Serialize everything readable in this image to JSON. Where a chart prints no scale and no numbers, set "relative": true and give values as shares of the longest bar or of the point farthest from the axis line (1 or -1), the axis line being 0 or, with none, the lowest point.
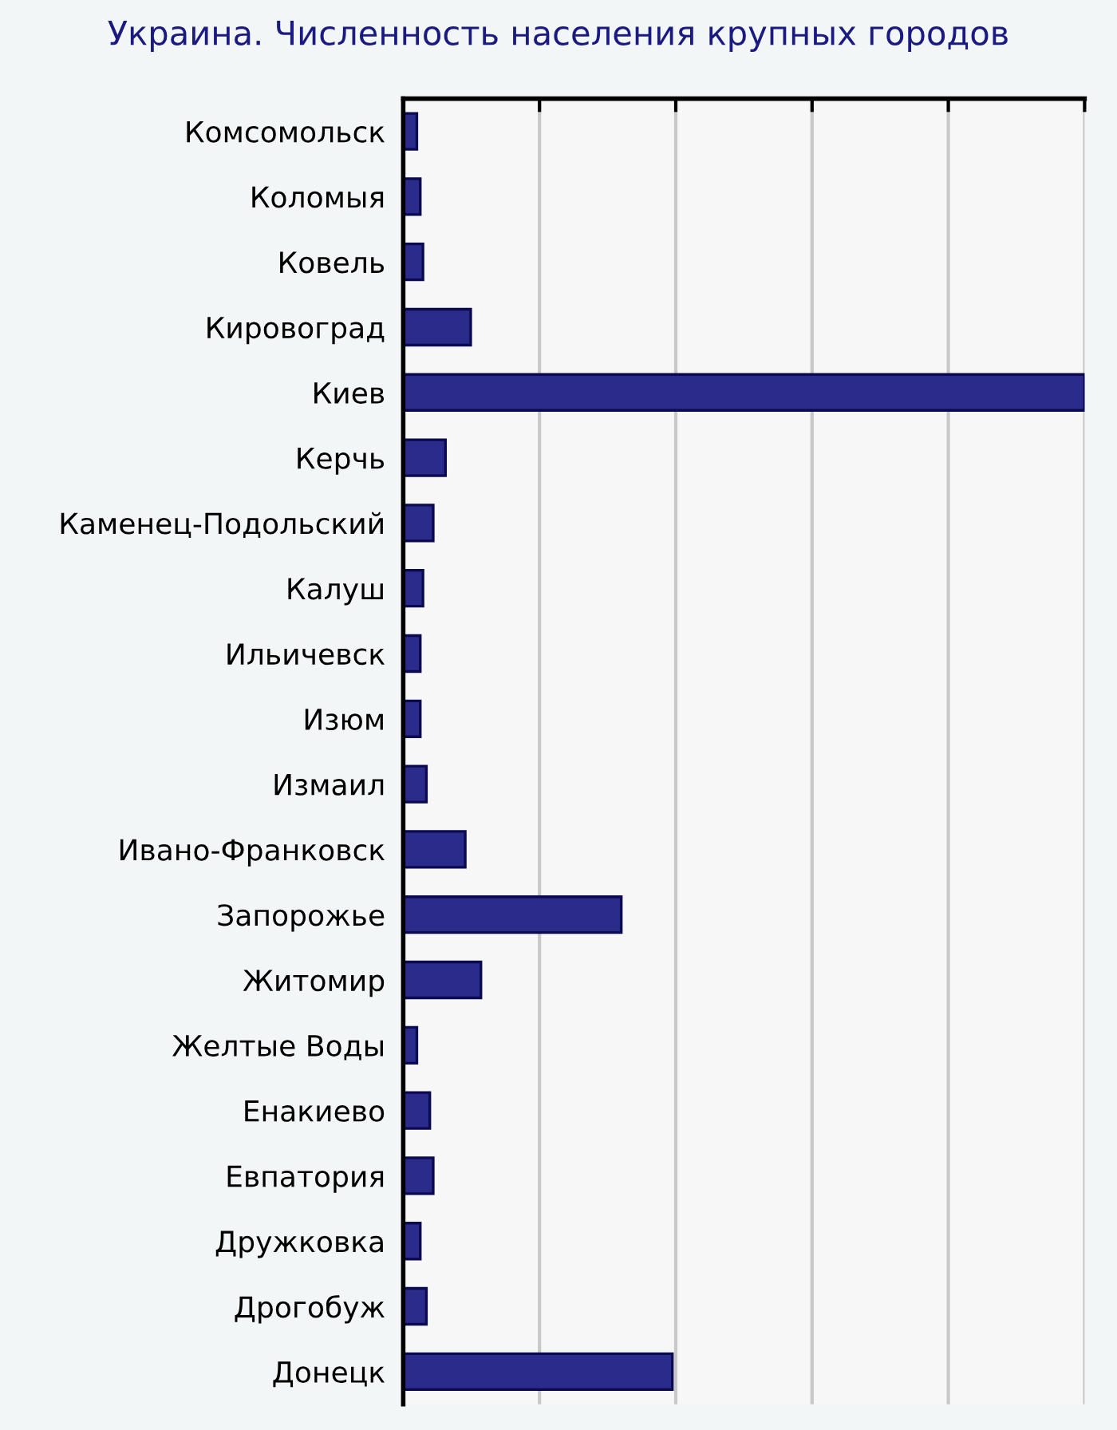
{
  "chart_data": {
    "type": "bar",
    "orientation": "horizontal",
    "relative": true,
    "title": "Украина. Численность населения крупных городов",
    "categories": [
      "Комсомольск",
      "Коломыя",
      "Ковель",
      "Кировоград",
      "Киев",
      "Керчь",
      "Каменец-Подольский",
      "Калуш",
      "Ильичевск",
      "Изюм",
      "Измаил",
      "Ивано-Франковск",
      "Запорожье",
      "Житомир",
      "Желтые Воды",
      "Енакиево",
      "Евпатория",
      "Дружковка",
      "Дрогобуж",
      "Донецк"
    ],
    "values": [
      0.02,
      0.025,
      0.029,
      0.099,
      1,
      0.062,
      0.044,
      0.029,
      0.025,
      0.025,
      0.034,
      0.091,
      0.32,
      0.114,
      0.02,
      0.039,
      0.044,
      0.025,
      0.034,
      0.395
    ],
    "color": "#2b2b8c",
    "grid": "x"
  }
}
